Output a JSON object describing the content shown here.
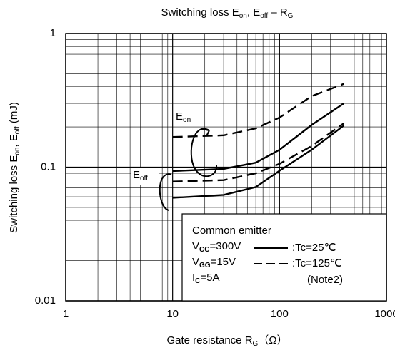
{
  "chart_data": {
    "type": "line",
    "title": [
      "Switching loss  E",
      "on",
      ", E",
      "off",
      " – R",
      "G"
    ],
    "xlabel": [
      "Gate resistance  R",
      "G",
      "（Ω）"
    ],
    "ylabel": [
      "Switching loss  E",
      "on",
      ", E",
      "off",
      "  (mJ)"
    ],
    "xscale": "log",
    "yscale": "log",
    "grid": true,
    "minor_grid": true,
    "xlim": [
      1,
      1000
    ],
    "ylim": [
      0.01,
      1
    ],
    "xticks": [
      1,
      10,
      100,
      1000
    ],
    "yticks": [
      0.01,
      0.1,
      1
    ],
    "x": [
      10,
      30,
      60,
      100,
      200,
      400
    ],
    "series": [
      {
        "style": "solid",
        "color": "#000000",
        "values": [
          0.0935,
          0.097,
          0.108,
          0.135,
          0.207,
          0.3
        ]
      },
      {
        "style": "dashed",
        "color": "#000000",
        "values": [
          0.168,
          0.173,
          0.195,
          0.235,
          0.34,
          0.42
        ]
      },
      {
        "style": "solid",
        "color": "#000000",
        "values": [
          0.059,
          0.062,
          0.071,
          0.094,
          0.135,
          0.205
        ]
      },
      {
        "style": "dashed",
        "color": "#000000",
        "values": [
          0.078,
          0.08,
          0.09,
          0.106,
          0.144,
          0.213
        ]
      }
    ],
    "annotations": [
      [
        "E",
        "on"
      ],
      [
        "E",
        "off"
      ]
    ],
    "legend": {
      "conditions": [
        [
          "Common emitter"
        ],
        [
          "V",
          "CC",
          "=300V"
        ],
        [
          "V",
          "GG",
          "=15V"
        ],
        [
          "I",
          "C",
          "=5A"
        ]
      ],
      "entries": [
        {
          "label": ":Tc=25℃",
          "style": "solid"
        },
        {
          "label": ":Tc=125℃",
          "style": "dashed"
        }
      ],
      "note": "(Note2)",
      "corner": "lower right"
    }
  }
}
